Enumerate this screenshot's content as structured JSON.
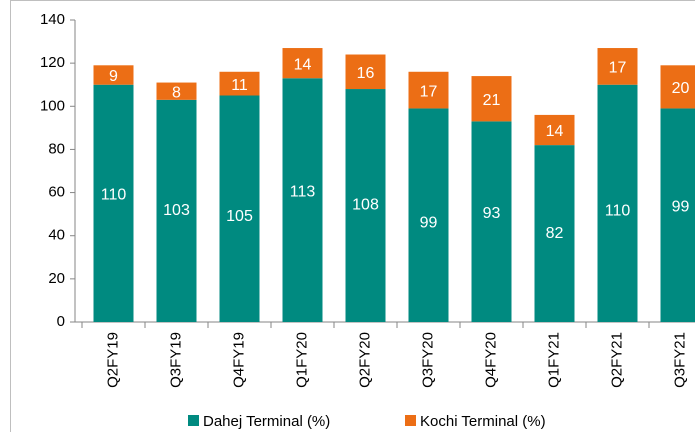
{
  "chart_data": {
    "type": "stacked_bar",
    "categories": [
      "Q2FY19",
      "Q3FY19",
      "Q4FY19",
      "Q1FY20",
      "Q2FY20",
      "Q3FY20",
      "Q4FY20",
      "Q1FY21",
      "Q2FY21",
      "Q3FY21"
    ],
    "series": [
      {
        "name": "Dahej Terminal (%)",
        "color": "#008a80",
        "values": [
          110,
          103,
          105,
          113,
          108,
          99,
          93,
          82,
          110,
          99
        ]
      },
      {
        "name": "Kochi Terminal (%)",
        "color": "#ec6e15",
        "values": [
          9,
          8,
          11,
          14,
          16,
          17,
          21,
          14,
          17,
          20
        ]
      }
    ],
    "ylim": [
      0,
      140
    ],
    "yticks": [
      0,
      20,
      40,
      60,
      80,
      100,
      120,
      140
    ],
    "grid": false,
    "legend": "bottom"
  }
}
